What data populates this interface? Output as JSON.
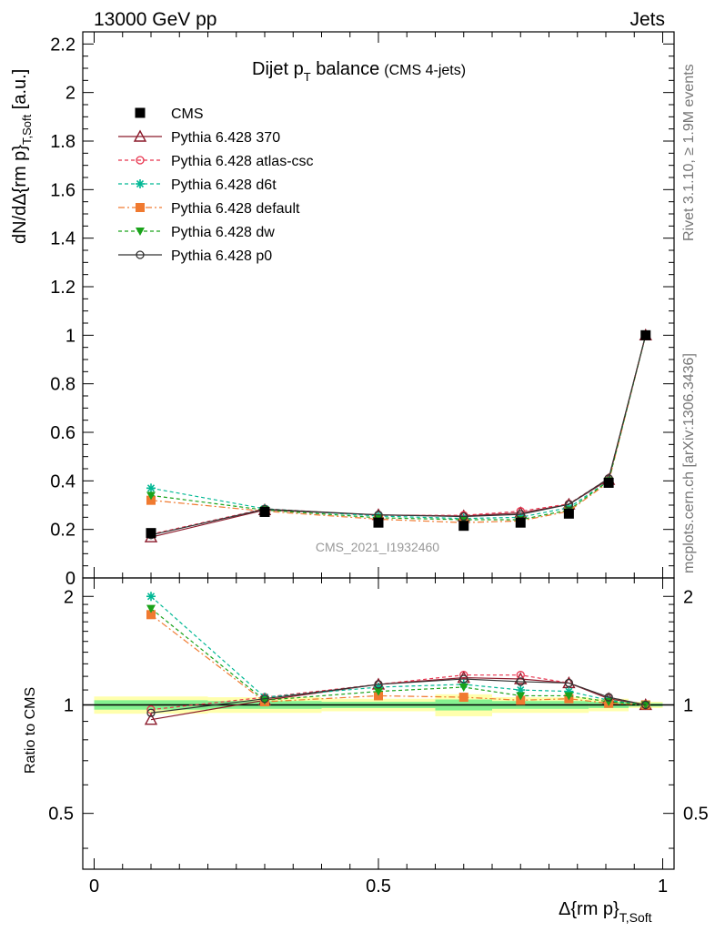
{
  "header": {
    "energy_label": "13000 GeV pp",
    "process_label": "Jets",
    "side_label_top": "Rivet 3.1.10, ≥ 1.9M events",
    "side_label_bottom": "mcplots.cern.ch [arXiv:1306.3436]",
    "analysis_id": "CMS_2021_I1932460"
  },
  "chart_data": [
    {
      "type": "line",
      "title": "Dijet p_T balance",
      "title_main": "Dijet p",
      "title_sub": "T",
      "title_rest": " balance",
      "title_note": "(CMS 4-jets)",
      "xlabel": "Δ{rm p}",
      "xlabel_sub": "T,Soft",
      "ylabel": "dN/dΔ{rm p}",
      "ylabel_sub": "T,Soft",
      "ylabel_unit": " [a.u.]",
      "xlim": [
        -0.02,
        1.02
      ],
      "ylim": [
        0,
        2.25
      ],
      "y_ticks": [
        0,
        0.2,
        0.4,
        0.6,
        0.8,
        1,
        1.2,
        1.4,
        1.6,
        1.8,
        2,
        2.2
      ],
      "y_tick_labels": [
        "0",
        "0.2",
        "0.4",
        "0.6",
        "0.8",
        "1",
        "1.2",
        "1.4",
        "1.6",
        "1.8",
        "2",
        "2.2"
      ],
      "x": [
        0.1,
        0.3,
        0.5,
        0.65,
        0.75,
        0.835,
        0.905,
        0.97
      ],
      "series": [
        {
          "name": "CMS",
          "color": "#000000",
          "marker": "square-filled",
          "line": "none",
          "values": [
            0.185,
            0.272,
            0.228,
            0.215,
            0.228,
            0.265,
            0.392,
            1.0
          ]
        },
        {
          "name": "Pythia 6.428 370",
          "color": "#8b1a2b",
          "marker": "triangle-open",
          "line": "solid",
          "values": [
            0.168,
            0.28,
            0.26,
            0.255,
            0.268,
            0.303,
            0.405,
            1.0
          ]
        },
        {
          "name": "Pythia 6.428 atlas-csc",
          "color": "#e8344e",
          "marker": "circle-open",
          "line": "dashed",
          "values": [
            0.18,
            0.285,
            0.258,
            0.258,
            0.275,
            0.305,
            0.41,
            1.0
          ]
        },
        {
          "name": "Pythia 6.428 d6t",
          "color": "#00b894",
          "marker": "star",
          "line": "dashed",
          "values": [
            0.37,
            0.285,
            0.255,
            0.245,
            0.25,
            0.29,
            0.4,
            1.0
          ]
        },
        {
          "name": "Pythia 6.428 default",
          "color": "#f07a30",
          "marker": "square-filled",
          "line": "dashdot",
          "values": [
            0.32,
            0.275,
            0.242,
            0.228,
            0.235,
            0.275,
            0.395,
            1.0
          ]
        },
        {
          "name": "Pythia 6.428 dw",
          "color": "#1aa31a",
          "marker": "triangle-down-filled",
          "line": "dashed",
          "values": [
            0.34,
            0.28,
            0.248,
            0.24,
            0.24,
            0.28,
            0.4,
            1.0
          ]
        },
        {
          "name": "Pythia 6.428 p0",
          "color": "#333333",
          "marker": "circle-open",
          "line": "solid",
          "values": [
            0.177,
            0.283,
            0.26,
            0.253,
            0.262,
            0.303,
            0.41,
            1.0
          ]
        }
      ]
    },
    {
      "type": "line",
      "ylabel": "Ratio to CMS",
      "xlim": [
        -0.02,
        1.02
      ],
      "ylim": [
        0.35,
        2.25
      ],
      "y_ticks": [
        0.5,
        1,
        2
      ],
      "y_tick_labels": [
        "0.5",
        "1",
        "2"
      ],
      "x_ticks": [
        0,
        0.5,
        1
      ],
      "x_tick_labels": [
        "0",
        "0.5",
        "1"
      ],
      "x": [
        0.1,
        0.3,
        0.5,
        0.65,
        0.75,
        0.835,
        0.905,
        0.97
      ],
      "bands": {
        "edges": [
          0.0,
          0.2,
          0.4,
          0.6,
          0.7,
          0.8,
          0.87,
          0.94,
          1.0
        ],
        "yellow_half_width": [
          0.055,
          0.05,
          0.04,
          0.07,
          0.05,
          0.05,
          0.04,
          0.02
        ],
        "green_half_width": [
          0.03,
          0.025,
          0.02,
          0.035,
          0.025,
          0.025,
          0.02,
          0.01
        ]
      },
      "series": [
        {
          "name": "Pythia 6.428 370",
          "values": [
            0.91,
            1.03,
            1.14,
            1.19,
            1.18,
            1.15,
            1.04,
            1.0
          ]
        },
        {
          "name": "Pythia 6.428 atlas-csc",
          "values": [
            0.97,
            1.05,
            1.14,
            1.21,
            1.21,
            1.15,
            1.05,
            1.0
          ]
        },
        {
          "name": "Pythia 6.428 d6t",
          "values": [
            2.0,
            1.05,
            1.12,
            1.14,
            1.1,
            1.09,
            1.03,
            1.0
          ]
        },
        {
          "name": "Pythia 6.428 default",
          "values": [
            1.78,
            1.02,
            1.06,
            1.05,
            1.03,
            1.04,
            1.01,
            1.0
          ]
        },
        {
          "name": "Pythia 6.428 dw",
          "values": [
            1.85,
            1.03,
            1.09,
            1.12,
            1.06,
            1.06,
            1.02,
            1.0
          ]
        },
        {
          "name": "Pythia 6.428 p0",
          "values": [
            0.95,
            1.04,
            1.14,
            1.18,
            1.16,
            1.15,
            1.05,
            1.0
          ]
        }
      ]
    }
  ]
}
